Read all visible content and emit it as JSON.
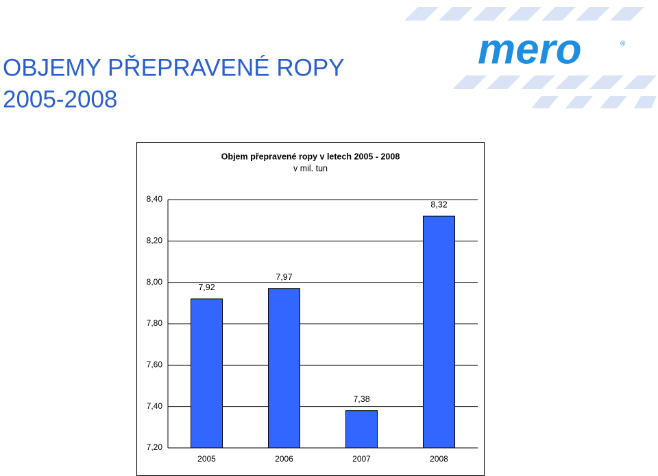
{
  "slide": {
    "title": [
      "OBJEMY PŘEPRAVENÉ ROPY",
      "2005-2008"
    ],
    "logo": "mero",
    "logo_mark": "®"
  },
  "chart_data": {
    "type": "bar",
    "title": "Objem přepravené ropy v letech 2005 - 2008",
    "subtitle": "v mil. tun",
    "categories": [
      "2005",
      "2006",
      "2007",
      "2008"
    ],
    "values": [
      7.92,
      7.97,
      7.38,
      8.32
    ],
    "value_labels": [
      "7,92",
      "7,97",
      "7,38",
      "8,32"
    ],
    "color": "#3366ff",
    "ylim": [
      7.2,
      8.4
    ],
    "yticks": [
      {
        "value": 7.2,
        "label": "7,20"
      },
      {
        "value": 7.4,
        "label": "7,40"
      },
      {
        "value": 7.6,
        "label": "7,60"
      },
      {
        "value": 7.8,
        "label": "7,80"
      },
      {
        "value": 8.0,
        "label": "8,00"
      },
      {
        "value": 8.2,
        "label": "8,20"
      },
      {
        "value": 8.4,
        "label": "8,40"
      }
    ],
    "grid": true
  }
}
